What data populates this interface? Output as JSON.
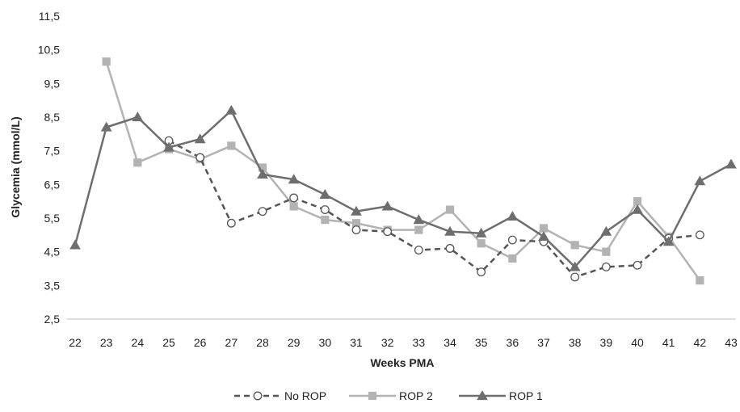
{
  "chart_data": {
    "type": "line",
    "xlabel": "Weeks PMA",
    "ylabel": "Glycemia  (mmol/L)",
    "x": [
      22,
      23,
      24,
      25,
      26,
      27,
      28,
      29,
      30,
      31,
      32,
      33,
      34,
      35,
      36,
      37,
      38,
      39,
      40,
      41,
      42,
      43
    ],
    "x_tick_labels": [
      "22",
      "23",
      "24",
      "25",
      "26",
      "27",
      "28",
      "29",
      "30",
      "31",
      "32",
      "33",
      "34",
      "35",
      "36",
      "37",
      "38",
      "39",
      "40",
      "41",
      "42",
      "43"
    ],
    "ylim": [
      2.5,
      11.5
    ],
    "y_ticks": [
      2.5,
      3.5,
      4.5,
      5.5,
      6.5,
      7.5,
      8.5,
      9.5,
      10.5,
      11.5
    ],
    "y_tick_labels": [
      "2,5",
      "3,5",
      "4,5",
      "5,5",
      "6,5",
      "7,5",
      "8,5",
      "9,5",
      "10,5",
      "11,5"
    ],
    "grid": false,
    "legend_position": "bottom",
    "series": [
      {
        "name": "No ROP",
        "color": "#555555",
        "line_style": "dashed",
        "marker": "circle-open",
        "values": [
          null,
          null,
          null,
          7.8,
          7.3,
          5.35,
          5.7,
          6.1,
          5.75,
          5.15,
          5.1,
          4.55,
          4.6,
          3.9,
          4.85,
          4.8,
          3.75,
          4.05,
          4.1,
          4.9,
          5.0,
          null
        ]
      },
      {
        "name": "ROP 2",
        "color": "#b3b3b3",
        "line_style": "solid",
        "marker": "square",
        "values": [
          null,
          10.15,
          7.15,
          7.55,
          7.25,
          7.65,
          7.0,
          5.85,
          5.45,
          5.35,
          5.15,
          5.15,
          5.75,
          4.75,
          4.3,
          5.2,
          4.7,
          4.5,
          6.0,
          4.95,
          3.65,
          null
        ]
      },
      {
        "name": "ROP 1",
        "color": "#6e6e6e",
        "line_style": "solid",
        "marker": "triangle",
        "values": [
          4.7,
          8.2,
          8.5,
          7.6,
          7.85,
          8.7,
          6.8,
          6.65,
          6.2,
          5.7,
          5.85,
          5.45,
          5.1,
          5.05,
          5.55,
          4.95,
          4.05,
          5.1,
          5.75,
          4.8,
          6.6,
          7.1
        ]
      }
    ]
  }
}
